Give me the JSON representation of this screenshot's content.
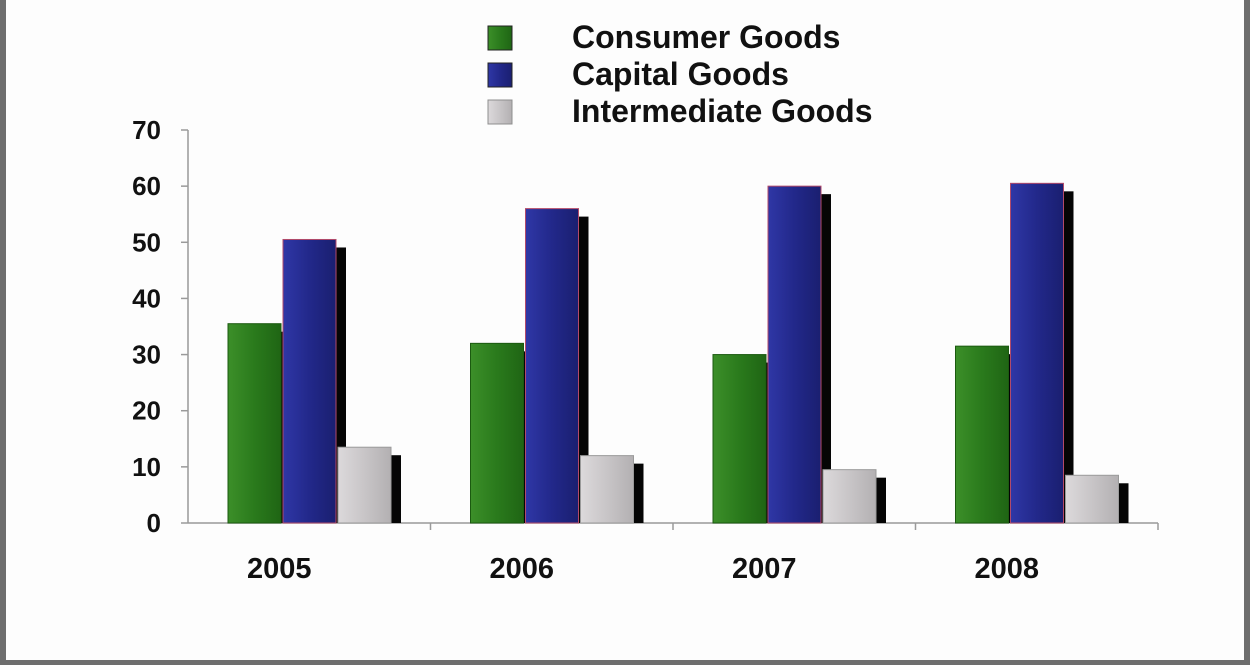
{
  "chart_data": {
    "type": "bar",
    "categories": [
      "2005",
      "2006",
      "2007",
      "2008"
    ],
    "series": [
      {
        "name": "Consumer Goods",
        "values": [
          35.5,
          32.0,
          30.0,
          31.5
        ],
        "color": "#2e7d1e"
      },
      {
        "name": "Capital Goods",
        "values": [
          50.5,
          56.0,
          60.0,
          60.5
        ],
        "color": "#242b8c"
      },
      {
        "name": "Intermediate Goods",
        "values": [
          13.5,
          12.0,
          9.5,
          8.5
        ],
        "color": "#c9c6c8"
      }
    ],
    "yticks": [
      "0",
      "10",
      "20",
      "30",
      "40",
      "50",
      "60",
      "70"
    ],
    "ylim": [
      0,
      70
    ],
    "title": "",
    "xlabel": "",
    "ylabel": "",
    "grid": false,
    "legend_position": "top-center"
  }
}
